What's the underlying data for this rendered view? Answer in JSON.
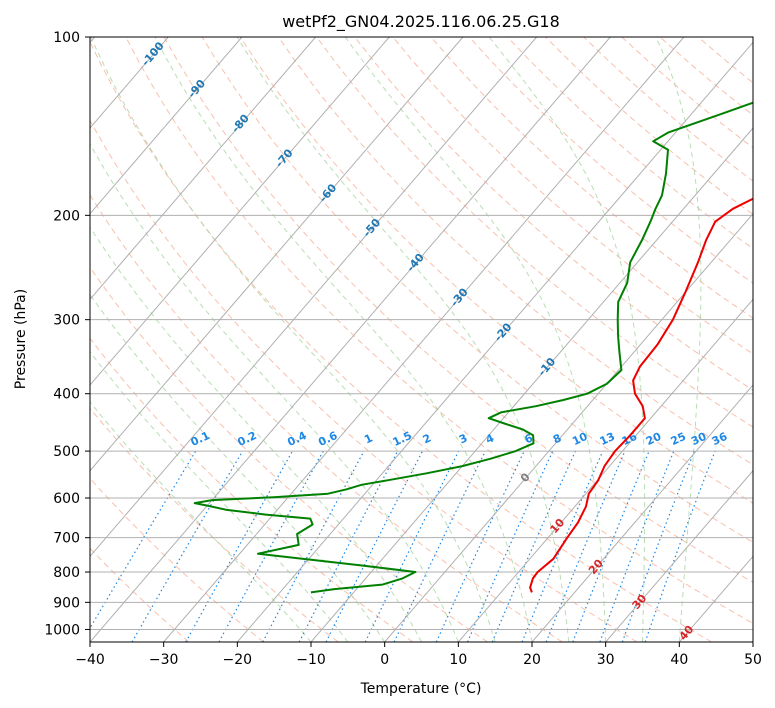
{
  "chart_data": {
    "type": "skew-t",
    "title": "wetPf2_GN04.2025.116.06.25.G18",
    "xlabel": "Temperature (°C)",
    "ylabel": "Pressure (hPa)",
    "xlim": [
      -40,
      50
    ],
    "ylim_hpa": [
      1050,
      100
    ],
    "log_pressure": true,
    "grid": true,
    "x_ticks": [
      -40,
      -30,
      -20,
      -10,
      0,
      10,
      20,
      30,
      40,
      50
    ],
    "x_tick_labels": [
      "−40",
      "−30",
      "−20",
      "−10",
      "0",
      "10",
      "20",
      "30",
      "40",
      "50"
    ],
    "y_ticks": [
      100,
      200,
      300,
      400,
      500,
      600,
      700,
      800,
      900,
      1000
    ],
    "y_tick_labels": [
      "100",
      "200",
      "300",
      "400",
      "500",
      "600",
      "700",
      "800",
      "900",
      "1000"
    ],
    "series": [
      {
        "type": "temperature",
        "color": "#ee0000",
        "pressure": [
          866,
          850,
          820,
          800,
          760,
          700,
          660,
          620,
          590,
          560,
          530,
          500,
          470,
          440,
          420,
          400,
          380,
          360,
          330,
          300,
          270,
          240,
          220,
          205,
          195,
          185,
          170,
          155,
          140,
          125,
          112,
          105,
          100
        ],
        "temperature": [
          14.2,
          13.4,
          12.7,
          12.6,
          13.2,
          12.6,
          12.3,
          11.5,
          10.4,
          10.1,
          9.3,
          9.0,
          9.2,
          9.2,
          7.5,
          5.0,
          3.2,
          2.5,
          2.3,
          1.5,
          0.0,
          -1.8,
          -3.3,
          -4.2,
          -3.3,
          -1.2,
          1.0,
          3.0,
          4.5,
          5.8,
          7.0,
          9.5,
          12.0
        ]
      },
      {
        "type": "dewpoint",
        "color": "#008000",
        "pressure": [
          866,
          855,
          840,
          820,
          800,
          780,
          745,
          720,
          690,
          665,
          650,
          640,
          628,
          618,
          612,
          605,
          598,
          590,
          580,
          570,
          560,
          545,
          530,
          515,
          500,
          485,
          470,
          460,
          450,
          440,
          430,
          420,
          410,
          400,
          385,
          365,
          340,
          320,
          300,
          280,
          260,
          240,
          220,
          205,
          195,
          185,
          170,
          155,
          150,
          145,
          135,
          120,
          110,
          100
        ],
        "temperature": [
          -15.8,
          -13,
          -7,
          -5,
          -4,
          -12,
          -27.5,
          -23,
          -24.5,
          -23.5,
          -24.5,
          -31,
          -37,
          -40,
          -42,
          -40,
          -32,
          -25,
          -23,
          -21.5,
          -18.5,
          -14,
          -10,
          -7,
          -4.5,
          -3,
          -4,
          -6,
          -9,
          -12,
          -11,
          -7,
          -4,
          -1.5,
          0,
          0.4,
          -2,
          -4,
          -6,
          -8,
          -9,
          -11,
          -12,
          -13,
          -13.8,
          -14.5,
          -16.5,
          -19,
          -22,
          -21,
          -16,
          -8,
          -3,
          1.5
        ]
      }
    ],
    "isotherm_labels": [
      "-100",
      "-90",
      "-80",
      "-70",
      "-60",
      "-50",
      "-40",
      "-30",
      "-20",
      "-10",
      "0",
      "10",
      "20",
      "30",
      "40"
    ],
    "isotherm_label_values": [
      -100,
      -90,
      -80,
      -70,
      -60,
      -50,
      -40,
      -30,
      -20,
      -10,
      0,
      10,
      20,
      30,
      40
    ],
    "mixing_ratio_labels": [
      "0.1",
      "0.2",
      "0.4",
      "0.6",
      "1",
      "1.5",
      "2",
      "3",
      "4",
      "6",
      "8",
      "10",
      "13",
      "16",
      "20",
      "25",
      "30",
      "36"
    ],
    "mixing_ratio_values": [
      0.1,
      0.2,
      0.4,
      0.6,
      1,
      1.5,
      2,
      3,
      4,
      6,
      8,
      10,
      13,
      16,
      20,
      25,
      30,
      36
    ],
    "colors": {
      "temperature": "#ee0000",
      "dewpoint": "#008000",
      "isotherm_cold_label": "#1f77b4",
      "isotherm_zero_label": "#808080",
      "isotherm_warm_label": "#d62728",
      "mixing_ratio": "#1e88e5",
      "dry_adiabat": "#f5a58a",
      "moist_adiabat": "#a8d5a2",
      "grid": "#b0b0b0"
    }
  }
}
